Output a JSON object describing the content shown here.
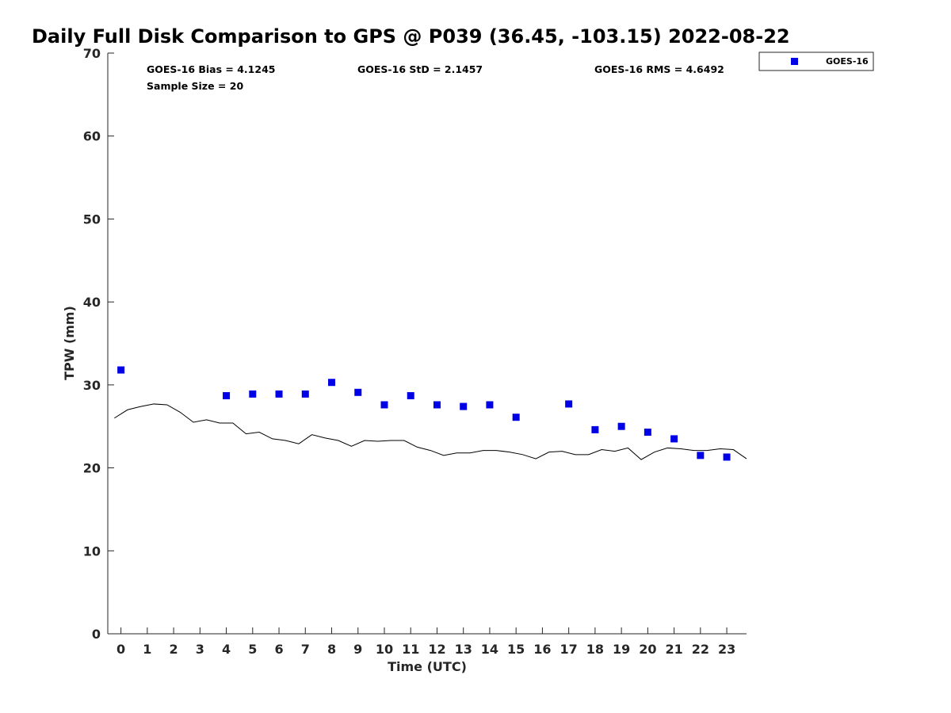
{
  "chart_data": {
    "type": "scatter",
    "title": "Daily Full Disk Comparison to GPS @ P039 (36.45, -103.15) 2022-08-22",
    "xlabel": "Time (UTC)",
    "ylabel": "TPW (mm)",
    "xlim": [
      -0.5,
      23.75
    ],
    "ylim": [
      0,
      70
    ],
    "x_ticks": [
      0,
      1,
      2,
      3,
      4,
      5,
      6,
      7,
      8,
      9,
      10,
      11,
      12,
      13,
      14,
      15,
      16,
      17,
      18,
      19,
      20,
      21,
      22,
      23
    ],
    "y_ticks": [
      0,
      10,
      20,
      30,
      40,
      50,
      60,
      70
    ],
    "grid": false,
    "legend": {
      "position": "top-right",
      "entries": [
        "GOES-16"
      ]
    },
    "stats": {
      "bias": "GOES-16 Bias = 4.1245",
      "std": "GOES-16 StD = 2.1457",
      "rms": "GOES-16 RMS = 4.6492",
      "sample": "Sample Size = 20"
    },
    "series": [
      {
        "name": "GOES-16",
        "type": "scatter",
        "marker": "square",
        "color": "#0000e6",
        "x": [
          0,
          4,
          5,
          6,
          7,
          8,
          9,
          10,
          11,
          12,
          13,
          14,
          15,
          17,
          18,
          19,
          20,
          21,
          22,
          23
        ],
        "y": [
          31.8,
          28.7,
          28.9,
          28.9,
          28.9,
          30.3,
          29.1,
          27.6,
          28.7,
          27.6,
          27.4,
          27.6,
          26.1,
          27.7,
          24.6,
          25.0,
          24.3,
          23.5,
          21.5,
          21.3
        ]
      },
      {
        "type": "line",
        "color": "#000000",
        "x": [
          -0.25,
          0.25,
          0.75,
          1.25,
          1.75,
          2.25,
          2.75,
          3.25,
          3.75,
          4.25,
          4.75,
          5.25,
          5.75,
          6.25,
          6.75,
          7.25,
          7.75,
          8.25,
          8.75,
          9.25,
          9.75,
          10.25,
          10.75,
          11.25,
          11.75,
          12.25,
          12.75,
          13.25,
          13.75,
          14.25,
          14.75,
          15.25,
          15.75,
          16.25,
          16.75,
          17.25,
          17.75,
          18.25,
          18.75,
          19.25,
          19.75,
          20.25,
          20.75,
          21.25,
          21.75,
          22.25,
          22.75,
          23.25,
          23.75
        ],
        "y": [
          26.0,
          27.0,
          27.4,
          27.7,
          27.6,
          26.7,
          25.5,
          25.8,
          25.4,
          25.4,
          24.1,
          24.3,
          23.5,
          23.3,
          22.9,
          24.0,
          23.6,
          23.3,
          22.6,
          23.3,
          23.2,
          23.3,
          23.3,
          22.5,
          22.1,
          21.5,
          21.8,
          21.8,
          22.1,
          22.1,
          21.9,
          21.6,
          21.1,
          21.9,
          22.0,
          21.6,
          21.6,
          22.2,
          22.0,
          22.4,
          21.0,
          21.9,
          22.4,
          22.3,
          22.1,
          22.1,
          22.3,
          22.2,
          21.1
        ]
      }
    ]
  }
}
